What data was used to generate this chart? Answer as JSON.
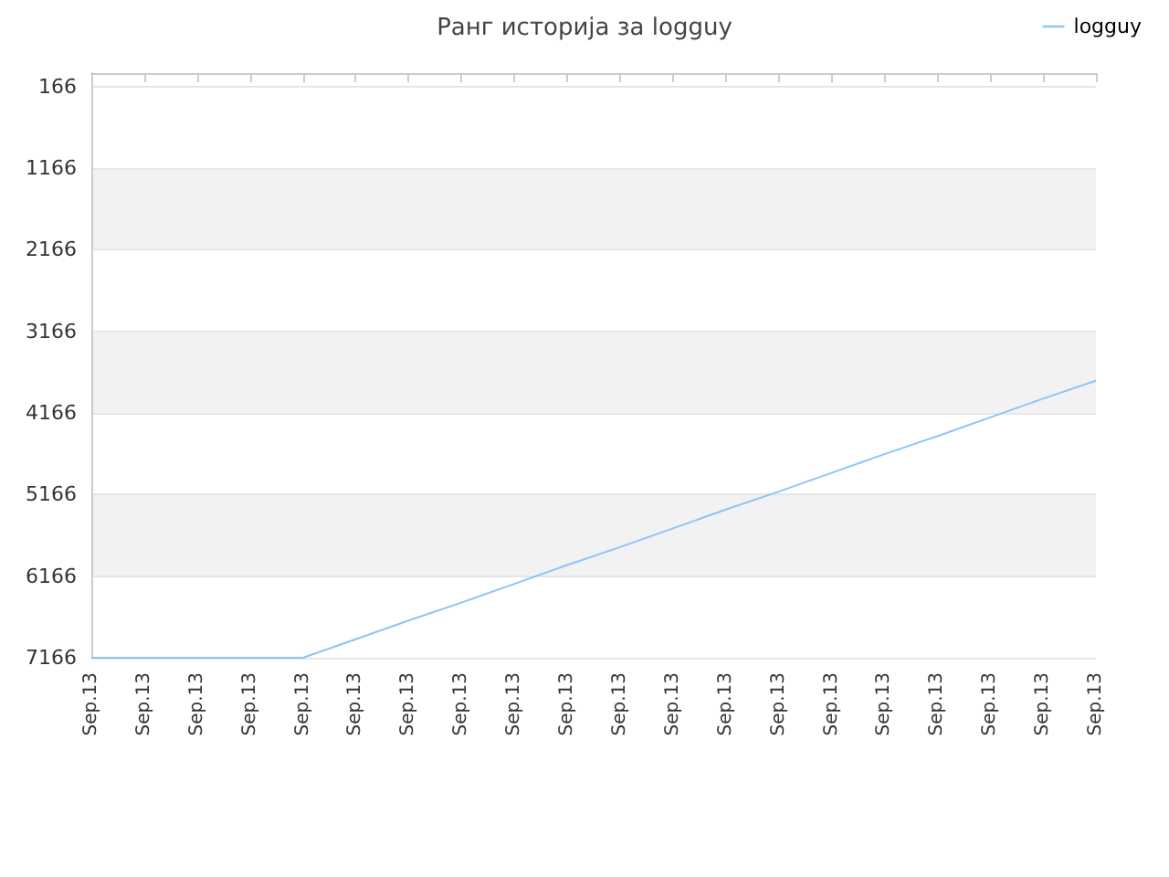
{
  "chart_data": {
    "type": "line",
    "title": "Ранг историја за logguy",
    "categories": [
      "Sep.13",
      "Sep.13",
      "Sep.13",
      "Sep.13",
      "Sep.13",
      "Sep.13",
      "Sep.13",
      "Sep.13",
      "Sep.13",
      "Sep.13",
      "Sep.13",
      "Sep.13",
      "Sep.13",
      "Sep.13",
      "Sep.13",
      "Sep.13",
      "Sep.13",
      "Sep.13",
      "Sep.13",
      "Sep.13"
    ],
    "series": [
      {
        "name": "logguy",
        "color": "#90c3f5",
        "values": [
          7166,
          7166,
          7166,
          7166,
          7166,
          6940,
          6710,
          6490,
          6260,
          6030,
          5810,
          5580,
          5350,
          5130,
          4900,
          4670,
          4450,
          4220,
          3990,
          3770
        ]
      }
    ],
    "ylim": [
      7166,
      0
    ],
    "yticks": [
      166,
      1166,
      2166,
      3166,
      4166,
      5166,
      6166,
      7166
    ],
    "grid": "y",
    "legend": "top right",
    "marker": "none",
    "line_style": "solid"
  }
}
